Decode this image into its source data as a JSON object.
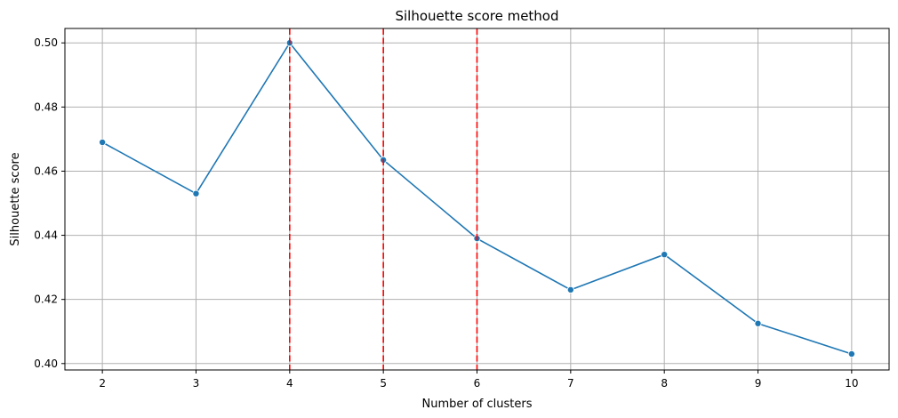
{
  "chart_data": {
    "type": "line",
    "title": "Silhouette score method",
    "xlabel": "Number of clusters",
    "ylabel": "Silhouette score",
    "x": [
      2,
      3,
      4,
      5,
      6,
      7,
      8,
      9,
      10
    ],
    "series": [
      {
        "values": [
          0.469,
          0.453,
          0.5,
          0.4635,
          0.439,
          0.423,
          0.434,
          0.4125,
          0.403
        ],
        "color": "#1f77b4",
        "marker": "circle"
      }
    ],
    "reference_lines": [
      {
        "x": 4,
        "color": "#ff0000",
        "style": "dashed"
      },
      {
        "x": 5,
        "color": "#ff0000",
        "style": "dashed"
      },
      {
        "x": 6,
        "color": "#ff0000",
        "style": "dashed"
      }
    ],
    "xticks": [
      "2",
      "3",
      "4",
      "5",
      "6",
      "7",
      "8",
      "9",
      "10"
    ],
    "yticks": [
      "0.40",
      "0.42",
      "0.44",
      "0.46",
      "0.48",
      "0.50"
    ],
    "xlim": [
      1.6,
      10.4
    ],
    "ylim": [
      0.398,
      0.5045
    ],
    "grid": true
  }
}
